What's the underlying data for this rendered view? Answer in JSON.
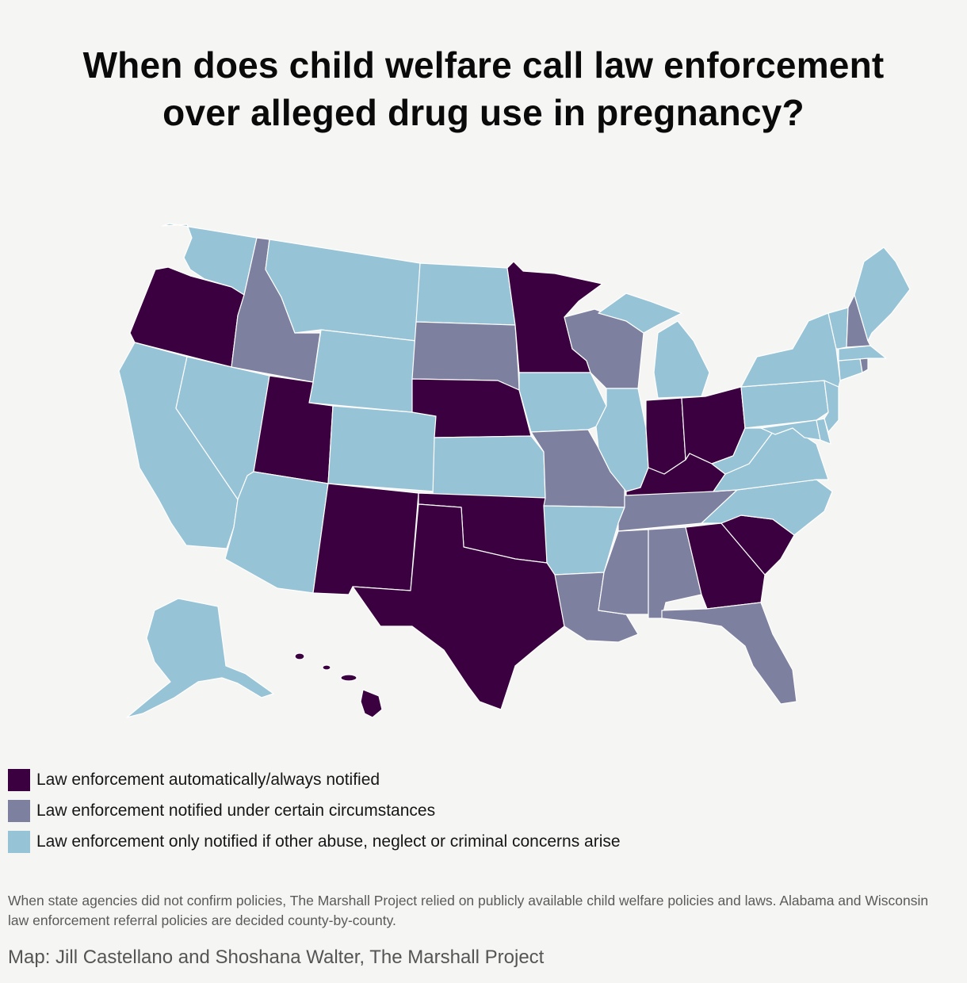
{
  "title_line1": "When does child welfare call law enforcement",
  "title_line2": "over alleged drug use in pregnancy?",
  "colors": {
    "always": "#3b0040",
    "certain": "#7e80a0",
    "other": "#97c3d6",
    "background": "#f5f5f3"
  },
  "legend": [
    {
      "key": "always",
      "label": "Law enforcement automatically/always notified"
    },
    {
      "key": "certain",
      "label": "Law enforcement notified under certain circumstances"
    },
    {
      "key": "other",
      "label": "Law enforcement only notified if other abuse, neglect or criminal concerns arise"
    }
  ],
  "note": "When state agencies did not confirm policies, The Marshall Project relied on publicly available child welfare policies and laws. Alabama and Wisconsin law enforcement referral policies are decided county-by-county.",
  "credit": "Map: Jill Castellano and Shoshana Walter, The Marshall Project",
  "states": {
    "WA": "other",
    "OR": "always",
    "CA": "other",
    "NV": "other",
    "ID": "certain",
    "MT": "other",
    "WY": "other",
    "UT": "always",
    "AZ": "other",
    "CO": "other",
    "NM": "always",
    "ND": "other",
    "SD": "certain",
    "NE": "always",
    "KS": "other",
    "OK": "always",
    "TX": "always",
    "MN": "always",
    "IA": "other",
    "MO": "certain",
    "AR": "other",
    "LA": "certain",
    "WI": "certain",
    "IL": "other",
    "MI": "other",
    "IN": "always",
    "OH": "always",
    "KY": "always",
    "TN": "certain",
    "MS": "certain",
    "AL": "certain",
    "GA": "always",
    "FL": "certain",
    "SC": "always",
    "NC": "other",
    "VA": "other",
    "WV": "other",
    "MD": "other",
    "DE": "other",
    "NJ": "other",
    "PA": "other",
    "NY": "other",
    "CT": "other",
    "RI": "certain",
    "MA": "other",
    "VT": "other",
    "NH": "certain",
    "ME": "other",
    "AK": "other",
    "HI": "always"
  }
}
